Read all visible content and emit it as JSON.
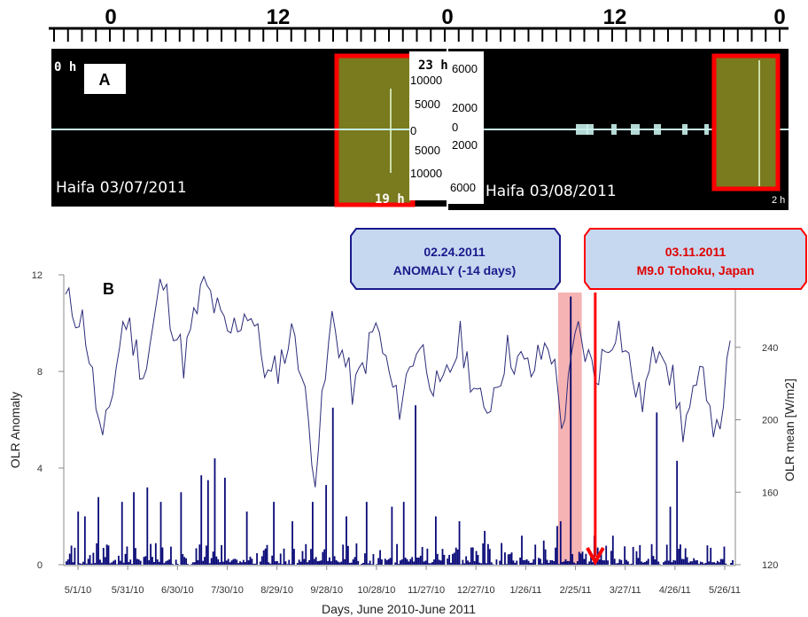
{
  "panel_a": {
    "panel_label": "A",
    "ruler_labels": [
      "0",
      "12",
      "0",
      "12",
      "0"
    ],
    "left": {
      "caption": "Haifa  03/07/2011",
      "start_hour": "0 h",
      "box_top_hour": "23 h",
      "box_bottom_hour": "19 h",
      "scale": [
        "10000",
        "5000",
        "0",
        "5000",
        "10000"
      ]
    },
    "right": {
      "caption": "Haifa  03/08/2011",
      "end_hour": "2 h",
      "scale": [
        "6000",
        "2000",
        "0",
        "2000",
        "6000"
      ]
    },
    "colors": {
      "background": "#000000",
      "trace": "#c8f0ea",
      "highlight_fill": "#7a7a1e",
      "highlight_border": "#ff0000"
    }
  },
  "chart_data": {
    "type": "bar+line",
    "panel_label": "B",
    "xlabel": "Days, June 2010-June 2011",
    "ylabel_left": "OLR Anomaly",
    "ylabel_right": "OLR mean [W/m2]",
    "ylim_left": [
      0,
      12
    ],
    "ylim_right": [
      120,
      280
    ],
    "yticks_left": [
      "0",
      "4",
      "8",
      "12"
    ],
    "yticks_right": [
      "120",
      "160",
      "200",
      "240"
    ],
    "x_tick_labels": [
      "5/1/10",
      "5/31/10",
      "6/30/10",
      "7/30/10",
      "8/29/10",
      "9/28/10",
      "10/28/10",
      "11/27/10",
      "12/27/10",
      "1/26/11",
      "2/25/11",
      "3/27/11",
      "4/26/11",
      "5/26/11"
    ],
    "start_date": "2010-05-01",
    "days": 396,
    "anomaly_spikes": [
      {
        "date": "2010-05-08",
        "value": 2.2
      },
      {
        "date": "2010-05-12",
        "value": 2.0
      },
      {
        "date": "2010-05-20",
        "value": 2.8
      },
      {
        "date": "2010-06-03",
        "value": 2.6
      },
      {
        "date": "2010-06-10",
        "value": 3.0
      },
      {
        "date": "2010-06-18",
        "value": 3.2
      },
      {
        "date": "2010-06-26",
        "value": 2.6
      },
      {
        "date": "2010-07-08",
        "value": 3.0
      },
      {
        "date": "2010-07-20",
        "value": 3.7
      },
      {
        "date": "2010-07-24",
        "value": 3.5
      },
      {
        "date": "2010-07-28",
        "value": 4.4
      },
      {
        "date": "2010-08-03",
        "value": 3.6
      },
      {
        "date": "2010-08-16",
        "value": 2.2
      },
      {
        "date": "2010-09-01",
        "value": 2.6
      },
      {
        "date": "2010-09-12",
        "value": 1.8
      },
      {
        "date": "2010-09-24",
        "value": 2.6
      },
      {
        "date": "2010-10-02",
        "value": 3.3
      },
      {
        "date": "2010-10-06",
        "value": 6.5
      },
      {
        "date": "2010-10-14",
        "value": 2.0
      },
      {
        "date": "2010-10-26",
        "value": 2.6
      },
      {
        "date": "2010-11-10",
        "value": 2.4
      },
      {
        "date": "2010-11-17",
        "value": 2.6
      },
      {
        "date": "2010-11-24",
        "value": 6.6
      },
      {
        "date": "2010-12-06",
        "value": 2.0
      },
      {
        "date": "2010-12-20",
        "value": 1.8
      },
      {
        "date": "2011-01-04",
        "value": 1.4
      },
      {
        "date": "2011-01-26",
        "value": 1.2
      },
      {
        "date": "2011-02-08",
        "value": 1.0
      },
      {
        "date": "2011-02-16",
        "value": 1.6
      },
      {
        "date": "2011-02-18",
        "value": 1.8
      },
      {
        "date": "2011-02-24",
        "value": 11.1
      },
      {
        "date": "2011-03-10",
        "value": 1.2
      },
      {
        "date": "2011-03-21",
        "value": 1.2
      },
      {
        "date": "2011-04-16",
        "value": 6.3
      },
      {
        "date": "2011-04-24",
        "value": 2.4
      },
      {
        "date": "2011-04-28",
        "value": 4.3
      },
      {
        "date": "2011-05-16",
        "value": 0.8
      }
    ],
    "olr_mean_points": [
      {
        "date": "2010-05-01",
        "value": 266
      },
      {
        "date": "2010-05-12",
        "value": 254
      },
      {
        "date": "2010-05-23",
        "value": 184
      },
      {
        "date": "2010-06-05",
        "value": 258
      },
      {
        "date": "2010-06-17",
        "value": 224
      },
      {
        "date": "2010-06-27",
        "value": 278
      },
      {
        "date": "2010-07-10",
        "value": 232
      },
      {
        "date": "2010-07-22",
        "value": 276
      },
      {
        "date": "2010-08-05",
        "value": 246
      },
      {
        "date": "2010-08-18",
        "value": 262
      },
      {
        "date": "2010-08-30",
        "value": 220
      },
      {
        "date": "2010-09-14",
        "value": 250
      },
      {
        "date": "2010-09-26",
        "value": 172
      },
      {
        "date": "2010-10-06",
        "value": 256
      },
      {
        "date": "2010-10-19",
        "value": 214
      },
      {
        "date": "2010-11-01",
        "value": 252
      },
      {
        "date": "2010-11-14",
        "value": 206
      },
      {
        "date": "2010-11-26",
        "value": 244
      },
      {
        "date": "2010-12-09",
        "value": 212
      },
      {
        "date": "2010-12-21",
        "value": 244
      },
      {
        "date": "2011-01-04",
        "value": 202
      },
      {
        "date": "2011-01-18",
        "value": 238
      },
      {
        "date": "2011-02-01",
        "value": 226
      },
      {
        "date": "2011-02-12",
        "value": 244
      },
      {
        "date": "2011-02-20",
        "value": 196
      },
      {
        "date": "2011-02-28",
        "value": 250
      },
      {
        "date": "2011-03-11",
        "value": 224
      },
      {
        "date": "2011-03-24",
        "value": 254
      },
      {
        "date": "2011-04-07",
        "value": 208
      },
      {
        "date": "2011-04-19",
        "value": 248
      },
      {
        "date": "2011-05-02",
        "value": 196
      },
      {
        "date": "2011-05-15",
        "value": 226
      },
      {
        "date": "2011-05-22",
        "value": 190
      },
      {
        "date": "2011-05-31",
        "value": 242
      }
    ],
    "anomaly_window": {
      "from": "2011-02-17",
      "to": "2011-03-03"
    },
    "earthquake_date": "2011-03-11",
    "callouts": [
      {
        "date": "02.24.2011",
        "text": "ANOMALY (-14 days)",
        "color": "#1a1a8c",
        "fill": "#c6d8f0"
      },
      {
        "date": "03.11.2011",
        "text": "M9.0 Tohoku, Japan",
        "color": "#ff0000",
        "fill": "#c6d8f0"
      }
    ],
    "colors": {
      "bars": "#0a0a78",
      "line": "#2c2c7a",
      "window": "#f4a6a6",
      "marker": "#ff0000",
      "anomaly_bar": "#000066"
    }
  }
}
